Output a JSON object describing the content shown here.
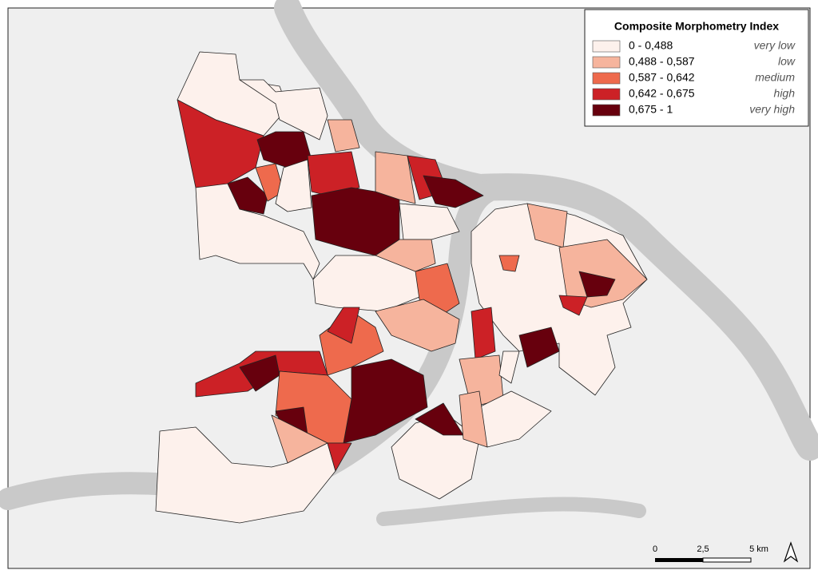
{
  "legend": {
    "title": "Composite Morphometry Index",
    "items": [
      {
        "range": "0 - 0,488",
        "label": "very low",
        "color": "#fdf1ec"
      },
      {
        "range": "0,488 - 0,587",
        "label": "low",
        "color": "#f6b49d"
      },
      {
        "range": "0,587 - 0,642",
        "label": "medium",
        "color": "#ee6a4d"
      },
      {
        "range": "0,642 - 0,675",
        "label": "high",
        "color": "#cc2126"
      },
      {
        "range": "0,675 - 1",
        "label": "very high",
        "color": "#67000d"
      }
    ]
  },
  "scale_bar": {
    "labels": [
      "0",
      "2,5",
      "5 km"
    ]
  }
}
